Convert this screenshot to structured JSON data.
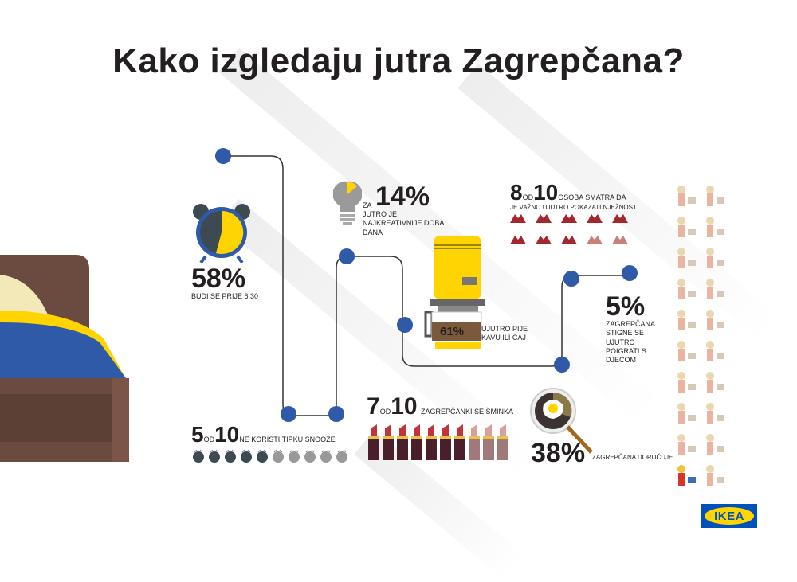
{
  "title": "Kako izgledaju jutra Zagrepčana?",
  "colors": {
    "path_dot": "#2e5aa8",
    "yellow": "#ffd400",
    "dark": "#3d4a52",
    "lipstick_on": "#c0343b",
    "lipstick_off": "#d8a09a",
    "heart_on": "#a3282e",
    "heart_off": "#c98078",
    "bed_frame": "#6b4a3f",
    "blanket": "#2e5aa8"
  },
  "stats": {
    "wake": {
      "value": "58%",
      "text": "BUDI SE PRIJE 6:30",
      "fraction": 0.58
    },
    "creative": {
      "prefix": "ZA",
      "value": "14%",
      "text": "JUTRO JE NAJKREATIVNIJE DOBA DANA",
      "fraction": 0.14
    },
    "tenderness": {
      "num": "8",
      "od": "OD",
      "den": "10",
      "text1": "OSOBA SMATRA DA",
      "text2": "JE VAŽNO UJUTRO POKAZATI NJEŽNOST",
      "count": 8,
      "total": 10
    },
    "coffee": {
      "value": "61%",
      "text": "UJUTRO PIJE KAVU ILI ČAJ"
    },
    "kids": {
      "value": "5%",
      "text": "ZAGREPČANA STIGNE SE UJUTRO POIGRATI S DJECOM",
      "count": 1,
      "total": 20
    },
    "snooze": {
      "num": "5",
      "od": "OD",
      "den": "10",
      "text": "NE KORISTI TIPKU SNOOZE",
      "count": 5,
      "total": 10
    },
    "makeup": {
      "num": "7",
      "od": "OD",
      "den": "10",
      "text": "ZAGREPČANKI SE ŠMINKA",
      "count": 7,
      "total": 10
    },
    "breakfast": {
      "value": "38%",
      "text": "ZAGREPČANA DORUČUJE",
      "fraction": 0.38
    }
  },
  "logo": "IKEA"
}
